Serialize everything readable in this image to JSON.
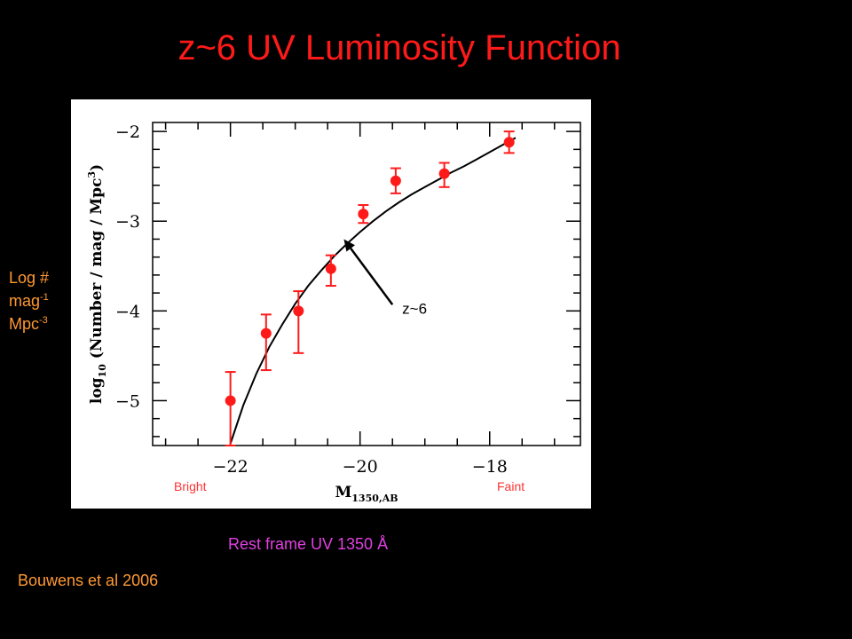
{
  "slide": {
    "title": "z~6 UV Luminosity Function",
    "side_label": {
      "line1": "Log #",
      "line2_base": "mag",
      "line2_sup": "-1",
      "line3_base": "Mpc",
      "line3_sup": "-3"
    },
    "rest_frame": "Rest frame UV 1350 Å",
    "citation": "Bouwens et al 2006"
  },
  "colors": {
    "points": "#ff1a1a",
    "curve": "#000000",
    "title": "#ff1a1a",
    "side_label": "#ff9933",
    "rest_frame": "#e040e0"
  },
  "chart_data": {
    "type": "scatter",
    "xlabel": {
      "base": "M",
      "sub": "1350,AB"
    },
    "ylabel": {
      "prefix": "log",
      "sub": "10",
      "main": " (Number / mag / Mpc",
      "sup": "3",
      "suffix": ")"
    },
    "xlim": [
      -23.2,
      -16.6
    ],
    "ylim": [
      -5.5,
      -1.9
    ],
    "xticks": [
      -22,
      -20,
      -18
    ],
    "xtick_labels": [
      "−22",
      "−20",
      "−18"
    ],
    "yticks": [
      -2,
      -3,
      -4,
      -5
    ],
    "ytick_labels": [
      "−2",
      "−3",
      "−4",
      "−5"
    ],
    "x_minor_step": 0.5,
    "y_minor_step": 0.2,
    "range_labels": {
      "bright": "Bright",
      "faint": "Faint"
    },
    "series": [
      {
        "type": "points_with_errors",
        "x": [
          -22.0,
          -21.45,
          -20.95,
          -20.45,
          -19.95,
          -19.45,
          -18.7,
          -17.7
        ],
        "y": [
          -5.0,
          -4.25,
          -4.0,
          -3.53,
          -2.92,
          -2.55,
          -2.47,
          -2.12
        ],
        "err_hi": [
          -4.68,
          -4.04,
          -3.78,
          -3.38,
          -2.82,
          -2.41,
          -2.35,
          -2.0
        ],
        "err_lo": [
          -5.5,
          -4.66,
          -4.47,
          -3.72,
          -3.02,
          -2.69,
          -2.62,
          -2.24
        ]
      },
      {
        "type": "curve",
        "x": [
          -22.0,
          -21.8,
          -21.6,
          -21.4,
          -21.2,
          -21.0,
          -20.8,
          -20.6,
          -20.4,
          -20.2,
          -20.0,
          -19.8,
          -19.6,
          -19.4,
          -19.2,
          -19.0,
          -18.8,
          -18.6,
          -18.4,
          -18.2,
          -18.0,
          -17.8,
          -17.6
        ],
        "y": [
          -5.48,
          -5.05,
          -4.7,
          -4.4,
          -4.15,
          -3.92,
          -3.72,
          -3.55,
          -3.39,
          -3.25,
          -3.12,
          -3.0,
          -2.89,
          -2.79,
          -2.7,
          -2.62,
          -2.54,
          -2.46,
          -2.39,
          -2.31,
          -2.23,
          -2.15,
          -2.07
        ]
      }
    ],
    "annotation": {
      "text": "z~6",
      "text_x": -19.35,
      "text_y": -3.97,
      "arrow_tail_x": -19.5,
      "arrow_tail_y": -3.93,
      "arrow_head_x": -20.25,
      "arrow_head_y": -3.2
    }
  }
}
